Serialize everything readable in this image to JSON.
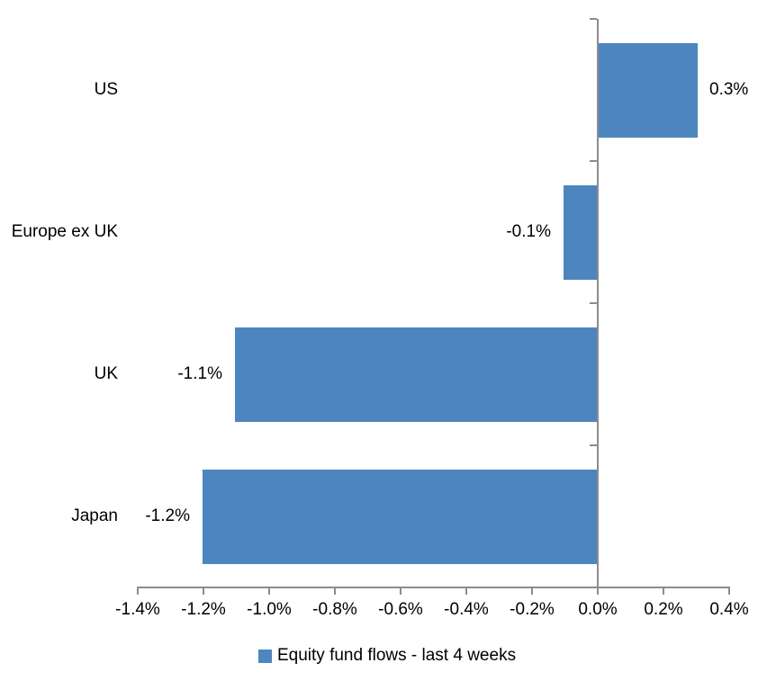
{
  "chart_data": {
    "type": "bar",
    "orientation": "horizontal",
    "title": "",
    "xlabel": "",
    "ylabel": "",
    "categories": [
      "US",
      "Europe ex UK",
      "UK",
      "Japan"
    ],
    "values": [
      0.3,
      -0.1,
      -1.1,
      -1.2
    ],
    "value_labels": [
      "0.3%",
      "-0.1%",
      "-1.1%",
      "-1.2%"
    ],
    "unit": "%",
    "xlim": [
      -1.4,
      0.4
    ],
    "x_tick_step": 0.2,
    "x_tick_labels": [
      "-1.4%",
      "-1.2%",
      "-1.0%",
      "-0.8%",
      "-0.6%",
      "-0.4%",
      "-0.2%",
      "0.0%",
      "0.2%",
      "0.4%"
    ],
    "grid": false,
    "legend": {
      "position": "bottom",
      "entries": [
        {
          "label": "Equity fund flows - last 4 weeks",
          "color": "#4d86be"
        }
      ]
    },
    "colors": {
      "bar": "#4d86be",
      "axis": "#8c8c8c",
      "text": "#000000",
      "background": "#ffffff"
    }
  }
}
